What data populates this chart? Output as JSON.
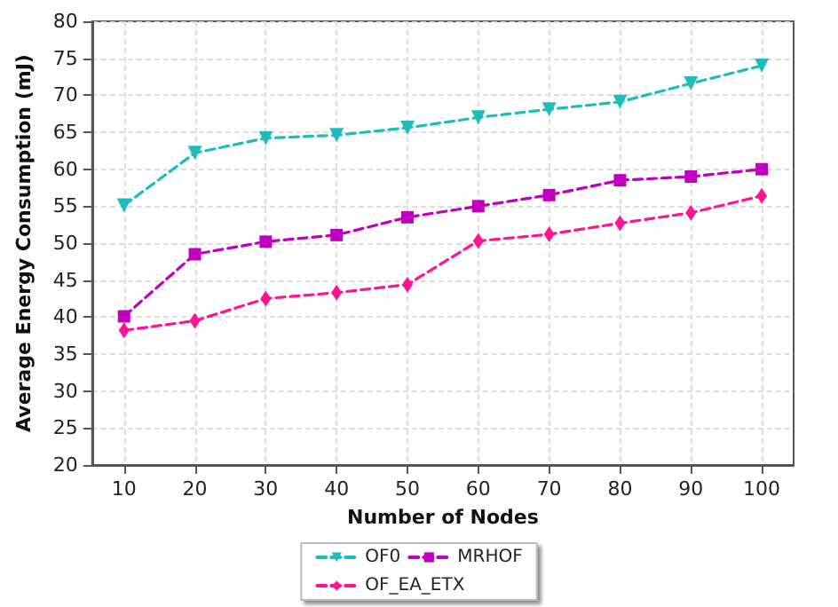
{
  "chart_data": {
    "type": "line",
    "xlabel": "Number of Nodes",
    "ylabel": "Average Energy Consumption (mJ)",
    "x": [
      10,
      20,
      30,
      40,
      50,
      60,
      70,
      80,
      90,
      100
    ],
    "series": [
      {
        "name": "OF0",
        "color": "#1fbcbc",
        "marker": "triangle",
        "line_style": "dashed",
        "values": [
          55.1,
          62.2,
          64.2,
          64.6,
          65.6,
          67.0,
          68.1,
          69.1,
          71.6,
          74.0
        ]
      },
      {
        "name": "MRHOF",
        "color": "#bf00bf",
        "marker": "square",
        "line_style": "dashed",
        "values": [
          40.1,
          48.5,
          50.2,
          51.1,
          53.5,
          55.0,
          56.5,
          58.5,
          59.0,
          60.0
        ]
      },
      {
        "name": "OF_EA_ETX",
        "color": "#ff1493",
        "marker": "diamond",
        "line_style": "dashed",
        "values": [
          38.2,
          39.5,
          42.5,
          43.3,
          44.4,
          50.3,
          51.2,
          52.7,
          54.1,
          56.4
        ]
      }
    ],
    "xlim": [
      5.5,
      104.5
    ],
    "xticks": [
      10,
      20,
      30,
      40,
      50,
      60,
      70,
      80,
      90,
      100
    ],
    "ylim": [
      20,
      80
    ],
    "yticks": [
      20,
      25,
      30,
      35,
      40,
      45,
      50,
      55,
      60,
      65,
      70,
      75,
      80
    ],
    "grid": true,
    "legend": "bottom"
  }
}
